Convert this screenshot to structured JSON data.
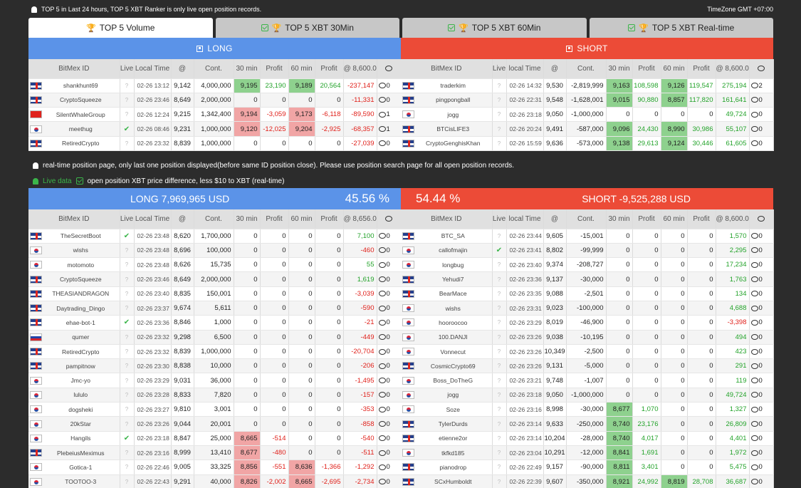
{
  "topbar": {
    "notice": "TOP 5 in Last 24 hours, TOP 5 XBT Ranker is only live open position records.",
    "timezone": "TimeZone GMT +07:00"
  },
  "tabs": [
    {
      "label": "TOP 5 Volume",
      "active": true
    },
    {
      "label": "TOP 5 XBT 30Min"
    },
    {
      "label": "TOP 5 XBT 60Min"
    },
    {
      "label": "TOP 5 XBT Real-time"
    }
  ],
  "side": {
    "long": "LONG",
    "short": "SHORT"
  },
  "top_headers_long": [
    "BitMex ID",
    "Live",
    "Local Time",
    "@",
    "Cont.",
    "30 min",
    "Profit",
    "60 min",
    "Profit",
    "@ 8,600.0",
    ""
  ],
  "top_headers_short": [
    "BitMex ID",
    "Live",
    "local Time",
    "@",
    "Cont.",
    "30 min",
    "Profit",
    "60 min",
    "Profit",
    "@ 8,600.0",
    ""
  ],
  "top_long": [
    {
      "flag": "uk",
      "id": "shankhunt69",
      "live": "?",
      "time": "02-26 13:12",
      "at": "9,142",
      "cont": "4,000,000",
      "m30": "9,195",
      "m30c": "gr",
      "p30": "23,190",
      "m60": "9,189",
      "m60c": "gr",
      "p60": "20,564",
      "pnl": "-237,147",
      "msg": "0"
    },
    {
      "flag": "uk",
      "id": "CryptoSqueeze",
      "live": "?",
      "time": "02-26 23:46",
      "at": "8,649",
      "cont": "2,000,000",
      "m30": "0",
      "m30c": "",
      "p30": "0",
      "m60": "0",
      "m60c": "",
      "p60": "0",
      "pnl": "-11,331",
      "msg": "0"
    },
    {
      "flag": "cn",
      "id": "SilentWhaleGroup",
      "live": "?",
      "time": "02-26 12:24",
      "at": "9,215",
      "cont": "1,342,400",
      "m30": "9,194",
      "m30c": "rd",
      "p30": "-3,059",
      "m60": "9,173",
      "m60c": "rd",
      "p60": "-6,118",
      "pnl": "-89,590",
      "msg": "1"
    },
    {
      "flag": "kr",
      "id": "meethug",
      "live": "✔",
      "time": "02-26 08:46",
      "at": "9,231",
      "cont": "1,000,000",
      "m30": "9,120",
      "m30c": "rd",
      "p30": "-12,025",
      "m60": "9,204",
      "m60c": "rd",
      "p60": "-2,925",
      "pnl": "-68,357",
      "msg": "1"
    },
    {
      "flag": "uk",
      "id": "RetiredCrypto",
      "live": "?",
      "time": "02-26 23:32",
      "at": "8,839",
      "cont": "1,000,000",
      "m30": "0",
      "m30c": "",
      "p30": "0",
      "m60": "0",
      "m60c": "",
      "p60": "0",
      "pnl": "-27,039",
      "msg": "0"
    }
  ],
  "top_short": [
    {
      "flag": "uk",
      "id": "traderkim",
      "live": "?",
      "time": "02-26 14:32",
      "at": "9,530",
      "cont": "-2,819,999",
      "m30": "9,163",
      "m30c": "gr",
      "p30": "108,598",
      "m60": "9,126",
      "m60c": "gr",
      "p60": "119,547",
      "pnl": "275,194",
      "msg": "2"
    },
    {
      "flag": "uk",
      "id": "pingpongball",
      "live": "?",
      "time": "02-26 22:31",
      "at": "9,548",
      "cont": "-1,628,001",
      "m30": "9,015",
      "m30c": "gr",
      "p30": "90,880",
      "m60": "8,857",
      "m60c": "gr",
      "p60": "117,820",
      "pnl": "161,641",
      "msg": "0"
    },
    {
      "flag": "kr",
      "id": "jogg",
      "live": "?",
      "time": "02-26 23:18",
      "at": "9,050",
      "cont": "-1,000,000",
      "m30": "0",
      "m30c": "",
      "p30": "0",
      "m60": "0",
      "m60c": "",
      "p60": "0",
      "pnl": "49,724",
      "msg": "0"
    },
    {
      "flag": "uk",
      "id": "BTCisLIFE3",
      "live": "?",
      "time": "02-26 20:24",
      "at": "9,491",
      "cont": "-587,000",
      "m30": "9,096",
      "m30c": "gr",
      "p30": "24,430",
      "m60": "8,990",
      "m60c": "gr",
      "p60": "30,986",
      "pnl": "55,107",
      "msg": "0"
    },
    {
      "flag": "uk",
      "id": "CryptoGenghisKhan",
      "live": "?",
      "time": "02-26 15:59",
      "at": "9,636",
      "cont": "-573,000",
      "m30": "9,138",
      "m30c": "gr",
      "p30": "29,613",
      "m60": "9,124",
      "m60c": "gr",
      "p60": "30,446",
      "pnl": "61,605",
      "msg": "0"
    }
  ],
  "info1": "real-time position page, only last one position displayed(before same ID position close). Please use position search page for all open position records.",
  "info2_live": "Live data",
  "info2": "open position XBT price difference, less $10 to XBT (real-time)",
  "bigbar": {
    "long": "LONG 7,969,965 USD",
    "long_pct": "45.56 %",
    "short_pct": "54.44 %",
    "short": "SHORT -9,525,288 USD"
  },
  "bottom_headers_long": [
    "BitMex ID",
    "Live",
    "Local Time",
    "@",
    "Cont.",
    "30 min",
    "Profit",
    "60 min",
    "Profit",
    "@ 8,656.0",
    ""
  ],
  "bottom_headers_short": [
    "BitMex ID",
    "Live",
    "local Time",
    "@",
    "Cont.",
    "30 min",
    "Profit",
    "60 min",
    "Profit",
    "@ 8,600.0",
    ""
  ],
  "bottom_long": [
    {
      "flag": "uk",
      "id": "TheSecretBoot",
      "live": "✔",
      "time": "02-26 23:48",
      "at": "8,620",
      "cont": "1,700,000",
      "m30": "0",
      "m30c": "",
      "p30": "0",
      "m60": "0",
      "m60c": "",
      "p60": "0",
      "pnl": "7,100",
      "msg": "0"
    },
    {
      "flag": "kr",
      "id": "wishs",
      "live": "?",
      "time": "02-26 23:48",
      "at": "8,696",
      "cont": "100,000",
      "m30": "0",
      "m30c": "",
      "p30": "0",
      "m60": "0",
      "m60c": "",
      "p60": "0",
      "pnl": "-460",
      "msg": "0"
    },
    {
      "flag": "kr",
      "id": "motomoto",
      "live": "?",
      "time": "02-26 23:48",
      "at": "8,626",
      "cont": "15,735",
      "m30": "0",
      "m30c": "",
      "p30": "0",
      "m60": "0",
      "m60c": "",
      "p60": "0",
      "pnl": "55",
      "msg": "0"
    },
    {
      "flag": "uk",
      "id": "CryptoSqueeze",
      "live": "?",
      "time": "02-26 23:46",
      "at": "8,649",
      "cont": "2,000,000",
      "m30": "0",
      "m30c": "",
      "p30": "0",
      "m60": "0",
      "m60c": "",
      "p60": "0",
      "pnl": "1,619",
      "msg": "0"
    },
    {
      "flag": "uk",
      "id": "THEASIANDRAGON",
      "live": "?",
      "time": "02-26 23:40",
      "at": "8,835",
      "cont": "150,001",
      "m30": "0",
      "m30c": "",
      "p30": "0",
      "m60": "0",
      "m60c": "",
      "p60": "0",
      "pnl": "-3,039",
      "msg": "0"
    },
    {
      "flag": "uk",
      "id": "Daytrading_Dingo",
      "live": "?",
      "time": "02-26 23:37",
      "at": "9,674",
      "cont": "5,611",
      "m30": "0",
      "m30c": "",
      "p30": "0",
      "m60": "0",
      "m60c": "",
      "p60": "0",
      "pnl": "-590",
      "msg": "0"
    },
    {
      "flag": "uk",
      "id": "ehae-bot-1",
      "live": "✔",
      "time": "02-26 23:36",
      "at": "8,846",
      "cont": "1,000",
      "m30": "0",
      "m30c": "",
      "p30": "0",
      "m60": "0",
      "m60c": "",
      "p60": "0",
      "pnl": "-21",
      "msg": "0"
    },
    {
      "flag": "ru",
      "id": "qumer",
      "live": "?",
      "time": "02-26 23:32",
      "at": "9,298",
      "cont": "6,500",
      "m30": "0",
      "m30c": "",
      "p30": "0",
      "m60": "0",
      "m60c": "",
      "p60": "0",
      "pnl": "-449",
      "msg": "0"
    },
    {
      "flag": "uk",
      "id": "RetiredCrypto",
      "live": "?",
      "time": "02-26 23:32",
      "at": "8,839",
      "cont": "1,000,000",
      "m30": "0",
      "m30c": "",
      "p30": "0",
      "m60": "0",
      "m60c": "",
      "p60": "0",
      "pnl": "-20,704",
      "msg": "0"
    },
    {
      "flag": "uk",
      "id": "pampitnow",
      "live": "?",
      "time": "02-26 23:30",
      "at": "8,838",
      "cont": "10,000",
      "m30": "0",
      "m30c": "",
      "p30": "0",
      "m60": "0",
      "m60c": "",
      "p60": "0",
      "pnl": "-206",
      "msg": "0"
    },
    {
      "flag": "kr",
      "id": "Jmc-yo",
      "live": "?",
      "time": "02-26 23:29",
      "at": "9,031",
      "cont": "36,000",
      "m30": "0",
      "m30c": "",
      "p30": "0",
      "m60": "0",
      "m60c": "",
      "p60": "0",
      "pnl": "-1,495",
      "msg": "0"
    },
    {
      "flag": "kr",
      "id": "lululo",
      "live": "?",
      "time": "02-26 23:28",
      "at": "8,833",
      "cont": "7,820",
      "m30": "0",
      "m30c": "",
      "p30": "0",
      "m60": "0",
      "m60c": "",
      "p60": "0",
      "pnl": "-157",
      "msg": "0"
    },
    {
      "flag": "kr",
      "id": "dogsheki",
      "live": "?",
      "time": "02-26 23:27",
      "at": "9,810",
      "cont": "3,001",
      "m30": "0",
      "m30c": "",
      "p30": "0",
      "m60": "0",
      "m60c": "",
      "p60": "0",
      "pnl": "-353",
      "msg": "0"
    },
    {
      "flag": "kr",
      "id": "20kStar",
      "live": "?",
      "time": "02-26 23:26",
      "at": "9,044",
      "cont": "20,001",
      "m30": "0",
      "m30c": "",
      "p30": "0",
      "m60": "0",
      "m60c": "",
      "p60": "0",
      "pnl": "-858",
      "msg": "0"
    },
    {
      "flag": "kr",
      "id": "Hangils",
      "live": "✔",
      "time": "02-26 23:18",
      "at": "8,847",
      "cont": "25,000",
      "m30": "8,665",
      "m30c": "rd",
      "p30": "-514",
      "m60": "0",
      "m60c": "",
      "p60": "0",
      "pnl": "-540",
      "msg": "0"
    },
    {
      "flag": "uk",
      "id": "PlebeiusMeximus",
      "live": "?",
      "time": "02-26 23:16",
      "at": "8,999",
      "cont": "13,410",
      "m30": "8,677",
      "m30c": "rd",
      "p30": "-480",
      "m60": "0",
      "m60c": "",
      "p60": "0",
      "pnl": "-511",
      "msg": "0"
    },
    {
      "flag": "kr",
      "id": "Gotica-1",
      "live": "?",
      "time": "02-26 22:46",
      "at": "9,005",
      "cont": "33,325",
      "m30": "8,856",
      "m30c": "rd",
      "p30": "-551",
      "m60": "8,636",
      "m60c": "rd",
      "p60": "-1,366",
      "pnl": "-1,292",
      "msg": "0"
    },
    {
      "flag": "kr",
      "id": "TOOTOO-3",
      "live": "?",
      "time": "02-26 22:43",
      "at": "9,291",
      "cont": "40,000",
      "m30": "8,826",
      "m30c": "rd",
      "p30": "-2,002",
      "m60": "8,665",
      "m60c": "rd",
      "p60": "-2,695",
      "pnl": "-2,734",
      "msg": "0"
    }
  ],
  "bottom_short": [
    {
      "flag": "uk",
      "id": "BTC_SA",
      "live": "?",
      "time": "02-26 23:44",
      "at": "9,605",
      "cont": "-15,001",
      "m30": "0",
      "m30c": "",
      "p30": "0",
      "m60": "0",
      "m60c": "",
      "p60": "0",
      "pnl": "1,570",
      "msg": "0"
    },
    {
      "flag": "kr",
      "id": "callofmajin",
      "live": "✔",
      "time": "02-26 23:41",
      "at": "8,802",
      "cont": "-99,999",
      "m30": "0",
      "m30c": "",
      "p30": "0",
      "m60": "0",
      "m60c": "",
      "p60": "0",
      "pnl": "2,295",
      "msg": "0"
    },
    {
      "flag": "kr",
      "id": "longbug",
      "live": "?",
      "time": "02-26 23:40",
      "at": "9,374",
      "cont": "-208,727",
      "m30": "0",
      "m30c": "",
      "p30": "0",
      "m60": "0",
      "m60c": "",
      "p60": "0",
      "pnl": "17,234",
      "msg": "0"
    },
    {
      "flag": "uk",
      "id": "Yehudi7",
      "live": "?",
      "time": "02-26 23:36",
      "at": "9,137",
      "cont": "-30,000",
      "m30": "0",
      "m30c": "",
      "p30": "0",
      "m60": "0",
      "m60c": "",
      "p60": "0",
      "pnl": "1,763",
      "msg": "0"
    },
    {
      "flag": "uk",
      "id": "BearMace",
      "live": "?",
      "time": "02-26 23:35",
      "at": "9,088",
      "cont": "-2,501",
      "m30": "0",
      "m30c": "",
      "p30": "0",
      "m60": "0",
      "m60c": "",
      "p60": "0",
      "pnl": "134",
      "msg": "0"
    },
    {
      "flag": "kr",
      "id": "wishs",
      "live": "?",
      "time": "02-26 23:31",
      "at": "9,023",
      "cont": "-100,000",
      "m30": "0",
      "m30c": "",
      "p30": "0",
      "m60": "0",
      "m60c": "",
      "p60": "0",
      "pnl": "4,688",
      "msg": "0"
    },
    {
      "flag": "kr",
      "id": "hooroocoo",
      "live": "?",
      "time": "02-26 23:29",
      "at": "8,019",
      "cont": "-46,900",
      "m30": "0",
      "m30c": "",
      "p30": "0",
      "m60": "0",
      "m60c": "",
      "p60": "0",
      "pnl": "-3,398",
      "msg": "0"
    },
    {
      "flag": "kr",
      "id": "100.DANJI",
      "live": "?",
      "time": "02-26 23:26",
      "at": "9,038",
      "cont": "-10,195",
      "m30": "0",
      "m30c": "",
      "p30": "0",
      "m60": "0",
      "m60c": "",
      "p60": "0",
      "pnl": "494",
      "msg": "0"
    },
    {
      "flag": "kr",
      "id": "Vonnecut",
      "live": "?",
      "time": "02-26 23:26",
      "at": "10,349",
      "cont": "-2,500",
      "m30": "0",
      "m30c": "",
      "p30": "0",
      "m60": "0",
      "m60c": "",
      "p60": "0",
      "pnl": "423",
      "msg": "0"
    },
    {
      "flag": "uk",
      "id": "CosmicCrypto69",
      "live": "?",
      "time": "02-26 23:26",
      "at": "9,131",
      "cont": "-5,000",
      "m30": "0",
      "m30c": "",
      "p30": "0",
      "m60": "0",
      "m60c": "",
      "p60": "0",
      "pnl": "291",
      "msg": "0"
    },
    {
      "flag": "kr",
      "id": "Boss_DoTheG",
      "live": "?",
      "time": "02-26 23:21",
      "at": "9,748",
      "cont": "-1,007",
      "m30": "0",
      "m30c": "",
      "p30": "0",
      "m60": "0",
      "m60c": "",
      "p60": "0",
      "pnl": "119",
      "msg": "0"
    },
    {
      "flag": "kr",
      "id": "jogg",
      "live": "?",
      "time": "02-26 23:18",
      "at": "9,050",
      "cont": "-1,000,000",
      "m30": "0",
      "m30c": "",
      "p30": "0",
      "m60": "0",
      "m60c": "",
      "p60": "0",
      "pnl": "49,724",
      "msg": "0"
    },
    {
      "flag": "kr",
      "id": "Soze",
      "live": "?",
      "time": "02-26 23:16",
      "at": "8,998",
      "cont": "-30,000",
      "m30": "8,677",
      "m30c": "gr",
      "p30": "1,070",
      "m60": "0",
      "m60c": "",
      "p60": "0",
      "pnl": "1,327",
      "msg": "0"
    },
    {
      "flag": "uk",
      "id": "TylerDurds",
      "live": "?",
      "time": "02-26 23:14",
      "at": "9,633",
      "cont": "-250,000",
      "m30": "8,740",
      "m30c": "gr",
      "p30": "23,176",
      "m60": "0",
      "m60c": "",
      "p60": "0",
      "pnl": "26,809",
      "msg": "0"
    },
    {
      "flag": "uk",
      "id": "etienne2or",
      "live": "?",
      "time": "02-26 23:14",
      "at": "10,204",
      "cont": "-28,000",
      "m30": "8,740",
      "m30c": "gr",
      "p30": "4,017",
      "m60": "0",
      "m60c": "",
      "p60": "0",
      "pnl": "4,401",
      "msg": "0"
    },
    {
      "flag": "kr",
      "id": "tkfkd185",
      "live": "?",
      "time": "02-26 23:04",
      "at": "10,291",
      "cont": "-12,000",
      "m30": "8,841",
      "m30c": "gr",
      "p30": "1,691",
      "m60": "0",
      "m60c": "",
      "p60": "0",
      "pnl": "1,972",
      "msg": "0"
    },
    {
      "flag": "uk",
      "id": "pianodrop",
      "live": "?",
      "time": "02-26 22:49",
      "at": "9,157",
      "cont": "-90,000",
      "m30": "8,811",
      "m30c": "gr",
      "p30": "3,401",
      "m60": "0",
      "m60c": "",
      "p60": "0",
      "pnl": "5,475",
      "msg": "0"
    },
    {
      "flag": "uk",
      "id": "SCxHumboldt",
      "live": "?",
      "time": "02-26 22:39",
      "at": "9,607",
      "cont": "-350,000",
      "m30": "8,921",
      "m30c": "gr",
      "p30": "24,992",
      "m60": "8,819",
      "m60c": "gr",
      "p60": "28,708",
      "pnl": "36,687",
      "msg": "0"
    }
  ],
  "colors": {
    "long": "#5b93e8",
    "short": "#ec4b37",
    "up": "#8ed18e",
    "down": "#f1a5a5",
    "positive": "#23a32a",
    "negative": "#e0201a"
  }
}
